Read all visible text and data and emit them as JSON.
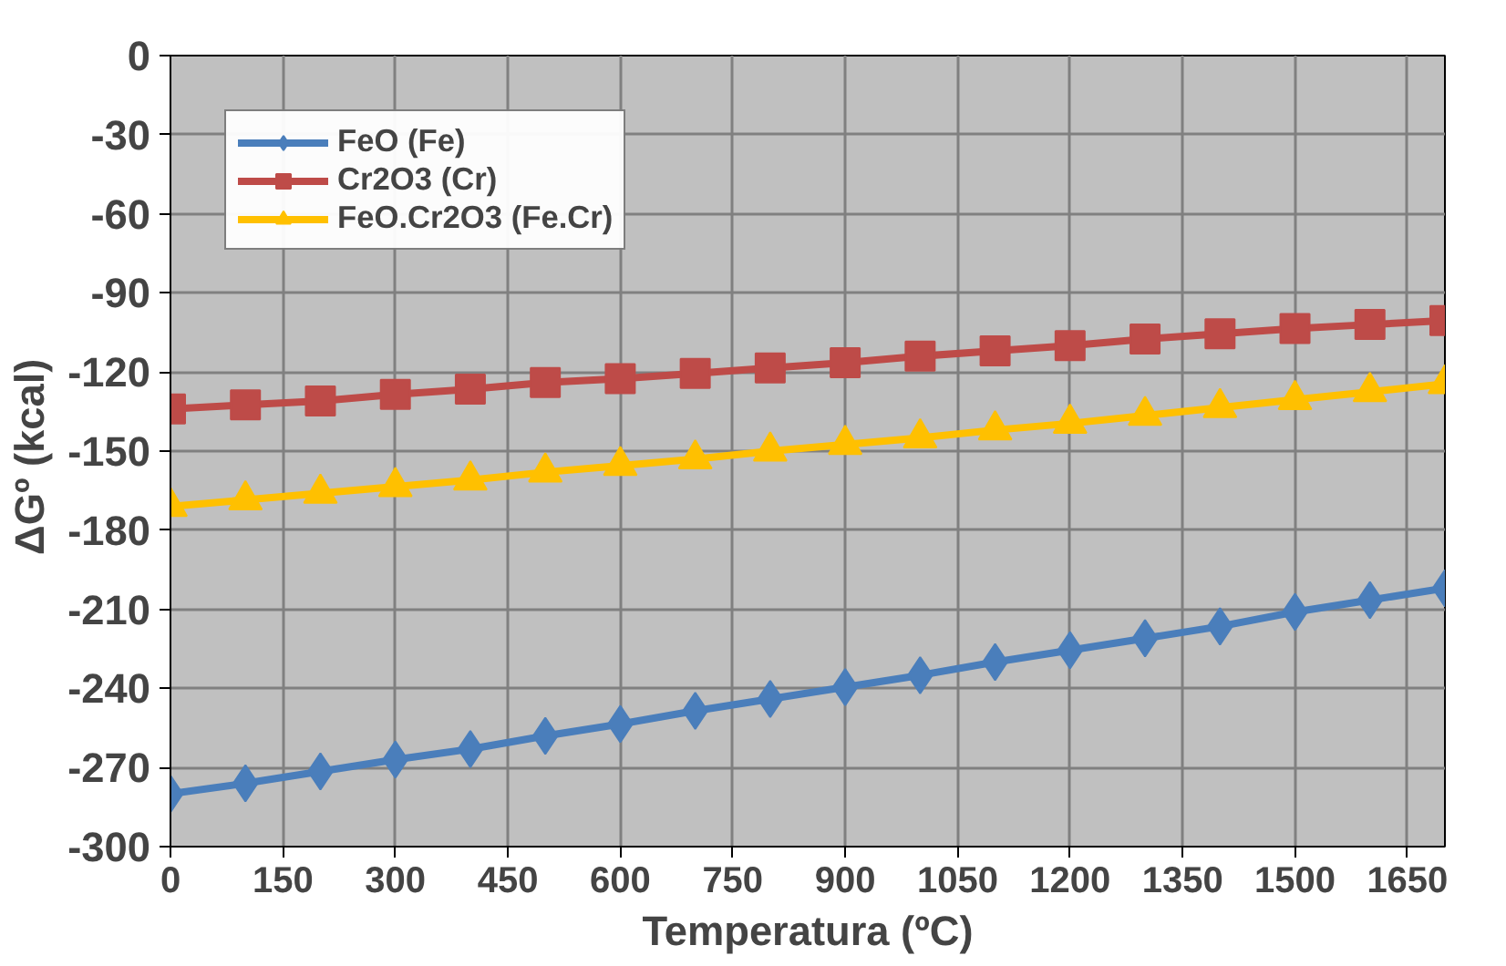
{
  "chart_data": {
    "type": "line",
    "xlabel": "Temperatura (ºC)",
    "ylabel": "ΔGº  (kcal)",
    "x": [
      0,
      100,
      200,
      300,
      400,
      500,
      600,
      700,
      800,
      900,
      1000,
      1100,
      1200,
      1300,
      1400,
      1500,
      1600,
      1700
    ],
    "series": [
      {
        "name": "FeO (Fe)",
        "color": "#4a7ebb",
        "marker": "diamond",
        "values": [
          -280,
          -276,
          -271.5,
          -267,
          -263,
          -258,
          -253.5,
          -248.5,
          -244,
          -239.5,
          -235,
          -230,
          -225.5,
          -221,
          -216.5,
          -211,
          -206.5,
          -202
        ]
      },
      {
        "name": "Cr2O3 (Cr)",
        "color": "#be4b48",
        "marker": "square",
        "values": [
          -134,
          -132.5,
          -131,
          -128.5,
          -126.5,
          -124,
          -122.5,
          -120.5,
          -118.5,
          -116.5,
          -114,
          -112,
          -110,
          -107.5,
          -105.5,
          -103.5,
          -102,
          -100.5
        ]
      },
      {
        "name": "FeO.Cr2O3 (Fe.Cr)",
        "color": "#ffc000",
        "marker": "triangle",
        "values": [
          -171,
          -168.5,
          -166,
          -163.5,
          -161,
          -158,
          -155.5,
          -153,
          -150,
          -147.5,
          -145,
          -142,
          -139.5,
          -136.5,
          -133.5,
          -130.5,
          -127.5,
          -124.5
        ]
      }
    ],
    "xlim": [
      0,
      1700
    ],
    "xticks": [
      0,
      150,
      300,
      450,
      600,
      750,
      900,
      1050,
      1200,
      1350,
      1500,
      1650
    ],
    "ylim": [
      -300,
      0
    ],
    "yticks": [
      -300,
      -270,
      -240,
      -210,
      -180,
      -150,
      -120,
      -90,
      -60,
      -30,
      0
    ],
    "grid": true,
    "legend": "top left",
    "line_style": "solid"
  }
}
